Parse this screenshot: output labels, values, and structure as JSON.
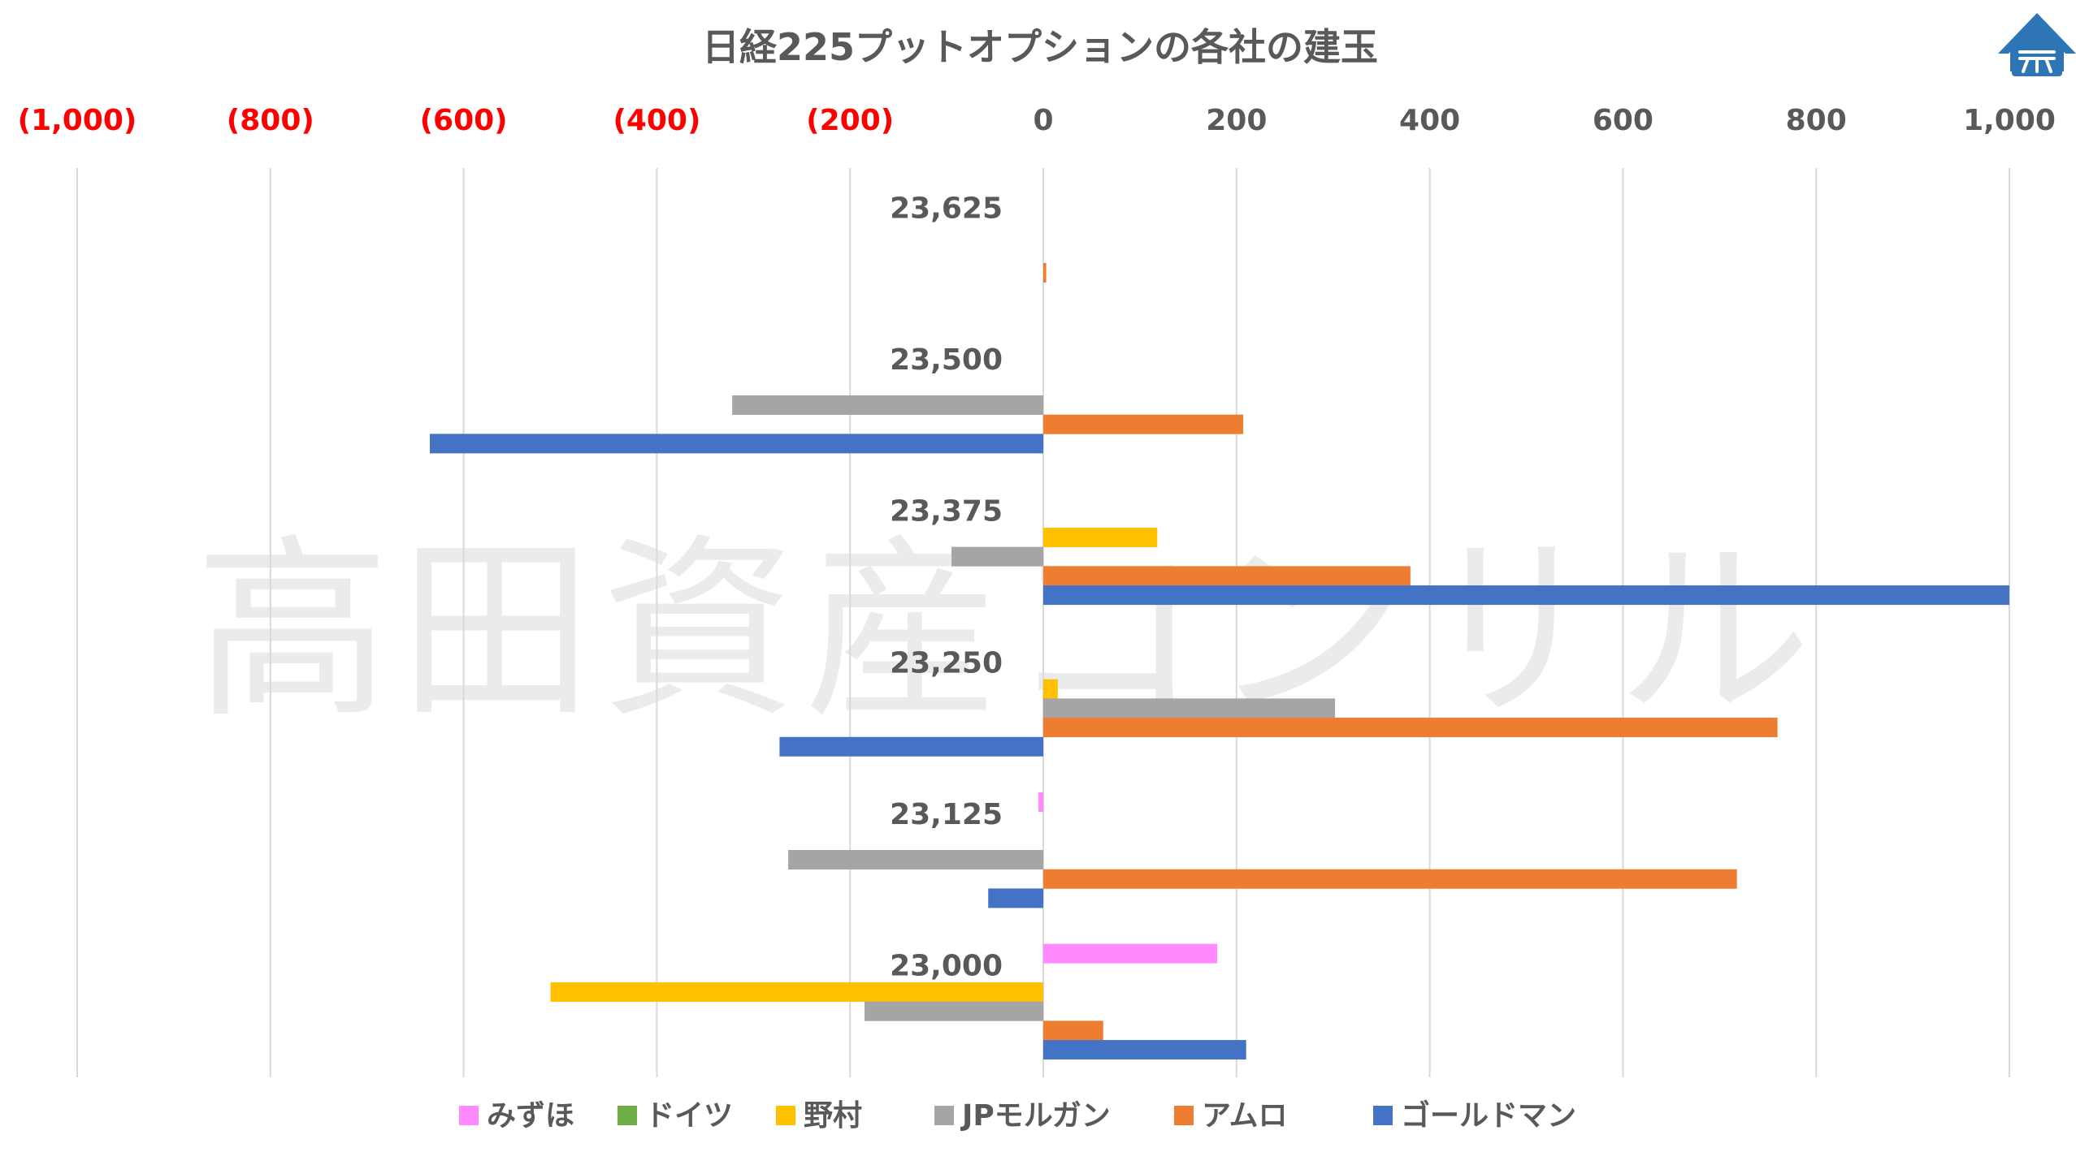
{
  "watermark": "高田資産コンサル",
  "chart_data": {
    "type": "bar",
    "orientation": "horizontal",
    "title": "日経225プットオプションの各社の建玉",
    "xlim": [
      -1000,
      1000
    ],
    "x_ticks": [
      -1000,
      -800,
      -600,
      -400,
      -200,
      0,
      200,
      400,
      600,
      800,
      1000
    ],
    "x_tick_labels": [
      "(1,000)",
      "(800)",
      "(600)",
      "(400)",
      "(200)",
      "0",
      "200",
      "400",
      "600",
      "800",
      "1,000"
    ],
    "axis_position": "top",
    "grid": true,
    "legend_position": "bottom",
    "negative_tick_color": "#FF0000",
    "positive_tick_color": "#595959",
    "categories": [
      "23,625",
      "23,500",
      "23,375",
      "23,250",
      "23,125",
      "23,000"
    ],
    "series": [
      {
        "name": "みずほ",
        "color": "#FF8AFF",
        "values": [
          0,
          0,
          0,
          0,
          -5,
          180
        ]
      },
      {
        "name": "ドイツ",
        "color": "#70AD47",
        "values": [
          0,
          0,
          0,
          0,
          0,
          0
        ]
      },
      {
        "name": "野村",
        "color": "#FFC000",
        "values": [
          0,
          0,
          118,
          15,
          0,
          -510
        ]
      },
      {
        "name": "JPモルガン",
        "color": "#A5A5A5",
        "values": [
          0,
          -322,
          -95,
          302,
          -264,
          -185
        ]
      },
      {
        "name": "アムロ",
        "color": "#ED7D31",
        "values": [
          3,
          207,
          380,
          760,
          718,
          62
        ]
      },
      {
        "name": "ゴールドマン",
        "color": "#4472C4",
        "values": [
          0,
          -635,
          1000,
          -273,
          -57,
          210
        ]
      }
    ]
  }
}
